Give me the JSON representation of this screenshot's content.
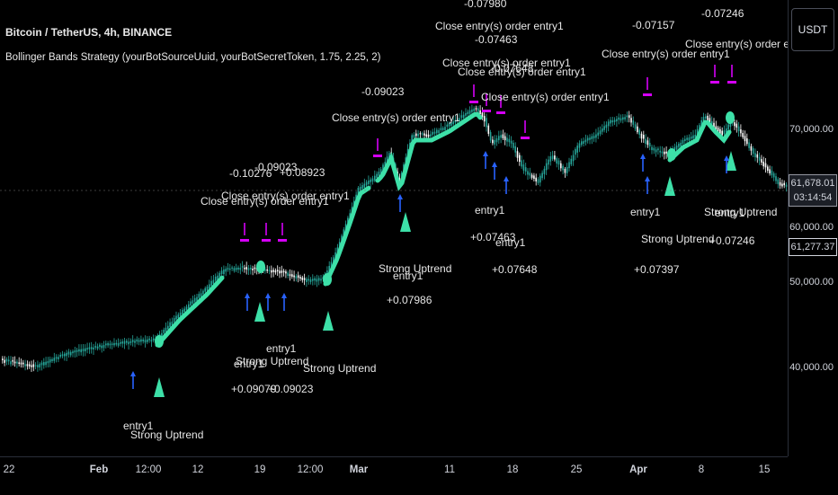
{
  "header": {
    "symbol": "Bitcoin / TetherUS, 4h, BINANCE",
    "study": "Bollinger Bands Strategy (yourBotSourceUuid, yourBotSecretToken, 1.75, 2.25, 2)"
  },
  "currency": "USDT",
  "price_axis": [
    "70,000.00",
    "60,000.00",
    "50,000.00",
    "40,000.00"
  ],
  "last_price": {
    "price": "61,678.01",
    "countdown": "03:14:54"
  },
  "ref_price": "61,277.37",
  "time_axis": [
    {
      "label": "22",
      "bold": false
    },
    {
      "label": "Feb",
      "bold": true
    },
    {
      "label": "12:00",
      "bold": false
    },
    {
      "label": "12",
      "bold": false
    },
    {
      "label": "19",
      "bold": false
    },
    {
      "label": "12:00",
      "bold": false
    },
    {
      "label": "Mar",
      "bold": true
    },
    {
      "label": "11",
      "bold": false
    },
    {
      "label": "18",
      "bold": false
    },
    {
      "label": "25",
      "bold": false
    },
    {
      "label": "Apr",
      "bold": true
    },
    {
      "label": "8",
      "bold": false
    },
    {
      "label": "15",
      "bold": false
    }
  ],
  "colors": {
    "up": "#26a69a",
    "down": "#ffffff",
    "highlight": "#3de0a8",
    "entry": "#2962ff",
    "exit": "#d500f9",
    "bg": "#000000"
  },
  "annotations": {
    "exit_label": "Close entry(s) order entry1",
    "entry_label": "entry1",
    "trend_label": "Strong Uptrend",
    "exits": [
      {
        "pnl": "-0.10276"
      },
      {
        "pnl": "-0.09023"
      },
      {
        "pnl": "+0.08923"
      },
      {
        "pnl": "-0.09023"
      },
      {
        "pnl": "-0.07980"
      },
      {
        "pnl": "-0.07463"
      },
      {
        "pnl": "-0.07648"
      },
      {
        "pnl": "-0.07157"
      },
      {
        "pnl": "-0.07246"
      }
    ],
    "entries": [
      {
        "pnl": "+0.09079"
      },
      {
        "pnl": "+0.09023"
      },
      {
        "pnl": "+0.07986"
      },
      {
        "pnl": "+0.07463"
      },
      {
        "pnl": "+0.07648"
      },
      {
        "pnl": "+0.07397"
      },
      {
        "pnl": "+0.07246"
      }
    ]
  }
}
